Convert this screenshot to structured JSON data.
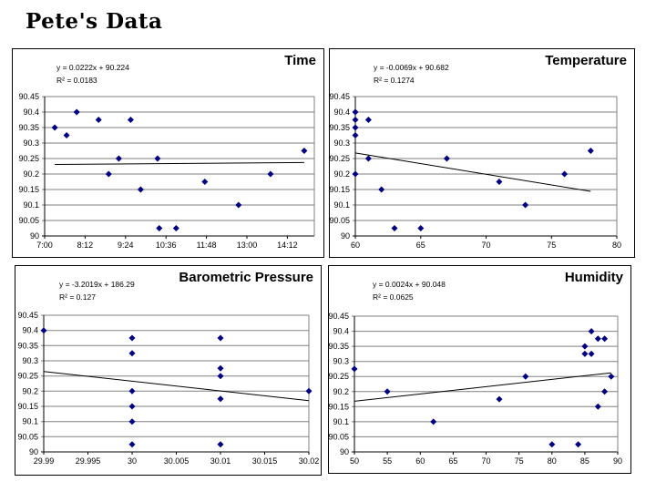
{
  "page_title": "Pete's Data",
  "colors": {
    "marker": "#000080",
    "gridline": "#808080",
    "axis": "#000000",
    "trendline": "#000000",
    "background": "#ffffff",
    "text": "#000000"
  },
  "y_axis": {
    "min": 90,
    "max": 90.45,
    "step": 0.05,
    "values": [
      90,
      90.05,
      90.1,
      90.15,
      90.2,
      90.25,
      90.3,
      90.35,
      90.4,
      90.45
    ],
    "labels": [
      "90",
      "90.05",
      "90.1",
      "90.15",
      "90.2",
      "90.25",
      "90.3",
      "90.35",
      "90.4",
      "90.45"
    ]
  },
  "chart_data": [
    {
      "type": "scatter",
      "title": "Time",
      "equation": "y = 0.0222x + 90.224",
      "r_squared": "R² = 0.0183",
      "xlabel": "",
      "ylabel": "",
      "x_ticks": [
        "7:00",
        "8:12",
        "9:24",
        "10:36",
        "11:48",
        "13:00",
        "14:12"
      ],
      "x_tick_values": [
        7.0,
        8.2,
        9.4,
        10.6,
        11.8,
        13.0,
        14.2
      ],
      "x_range": [
        7.0,
        15.0
      ],
      "ylim": [
        90,
        90.45
      ],
      "grid": true,
      "legend": false,
      "points": [
        [
          7.3,
          90.35
        ],
        [
          7.65,
          90.325
        ],
        [
          7.95,
          90.4
        ],
        [
          8.6,
          90.375
        ],
        [
          8.9,
          90.2
        ],
        [
          9.2,
          90.25
        ],
        [
          9.55,
          90.375
        ],
        [
          9.85,
          90.15
        ],
        [
          10.35,
          90.25
        ],
        [
          10.4,
          90.025
        ],
        [
          10.9,
          90.025
        ],
        [
          11.75,
          90.175
        ],
        [
          12.75,
          90.1
        ],
        [
          13.7,
          90.2
        ],
        [
          14.7,
          90.275
        ]
      ],
      "trendline": {
        "x1": 7.3,
        "y1": 90.231,
        "x2": 14.7,
        "y2": 90.237
      }
    },
    {
      "type": "scatter",
      "title": "Temperature",
      "equation": "y = -0.0069x + 90.682",
      "r_squared": "R² = 0.1274",
      "xlabel": "",
      "ylabel": "",
      "x_ticks": [
        "60",
        "65",
        "70",
        "75",
        "80"
      ],
      "x_tick_values": [
        60,
        65,
        70,
        75,
        80
      ],
      "x_range": [
        60,
        80
      ],
      "ylim": [
        90,
        90.45
      ],
      "grid": true,
      "legend": false,
      "points": [
        [
          60,
          90.4
        ],
        [
          60,
          90.375
        ],
        [
          60,
          90.35
        ],
        [
          60,
          90.325
        ],
        [
          60,
          90.2
        ],
        [
          61,
          90.375
        ],
        [
          61,
          90.25
        ],
        [
          62,
          90.15
        ],
        [
          63,
          90.025
        ],
        [
          65,
          90.025
        ],
        [
          67,
          90.25
        ],
        [
          71,
          90.175
        ],
        [
          73,
          90.1
        ],
        [
          76,
          90.2
        ],
        [
          78,
          90.275
        ]
      ],
      "trendline": {
        "x1": 60,
        "y1": 90.268,
        "x2": 78,
        "y2": 90.144
      }
    },
    {
      "type": "scatter",
      "title": "Barometric Pressure",
      "equation": "y = -3.2019x + 186.29",
      "r_squared": "R² = 0.127",
      "xlabel": "",
      "ylabel": "",
      "x_ticks": [
        "29.99",
        "29.995",
        "30",
        "30.005",
        "30.01",
        "30.015",
        "30.02"
      ],
      "x_tick_values": [
        29.99,
        29.995,
        30.0,
        30.005,
        30.01,
        30.015,
        30.02
      ],
      "x_range": [
        29.99,
        30.02
      ],
      "ylim": [
        90,
        90.45
      ],
      "grid": true,
      "legend": false,
      "points": [
        [
          29.99,
          90.4
        ],
        [
          30.0,
          90.375
        ],
        [
          30.0,
          90.325
        ],
        [
          30.0,
          90.2
        ],
        [
          30.0,
          90.15
        ],
        [
          30.0,
          90.1
        ],
        [
          30.0,
          90.025
        ],
        [
          30.01,
          90.375
        ],
        [
          30.01,
          90.275
        ],
        [
          30.01,
          90.25
        ],
        [
          30.01,
          90.175
        ],
        [
          30.01,
          90.025
        ],
        [
          30.02,
          90.2
        ]
      ],
      "trendline": {
        "x1": 29.99,
        "y1": 90.265,
        "x2": 30.02,
        "y2": 90.169
      }
    },
    {
      "type": "scatter",
      "title": "Humidity",
      "equation": "y = 0.0024x + 90.048",
      "r_squared": "R² = 0.0625",
      "xlabel": "",
      "ylabel": "",
      "x_ticks": [
        "50",
        "55",
        "60",
        "65",
        "70",
        "75",
        "80",
        "85",
        "90"
      ],
      "x_tick_values": [
        50,
        55,
        60,
        65,
        70,
        75,
        80,
        85,
        90
      ],
      "x_range": [
        50,
        90
      ],
      "ylim": [
        90,
        90.45
      ],
      "grid": true,
      "legend": false,
      "points": [
        [
          50,
          90.275
        ],
        [
          55,
          90.2
        ],
        [
          62,
          90.1
        ],
        [
          72,
          90.175
        ],
        [
          76,
          90.25
        ],
        [
          80,
          90.025
        ],
        [
          84,
          90.025
        ],
        [
          85,
          90.35
        ],
        [
          85,
          90.325
        ],
        [
          86,
          90.4
        ],
        [
          86,
          90.325
        ],
        [
          87,
          90.375
        ],
        [
          87,
          90.15
        ],
        [
          88,
          90.375
        ],
        [
          88,
          90.2
        ],
        [
          89,
          90.25
        ]
      ],
      "trendline": {
        "x1": 50,
        "y1": 90.168,
        "x2": 89,
        "y2": 90.262
      }
    }
  ]
}
